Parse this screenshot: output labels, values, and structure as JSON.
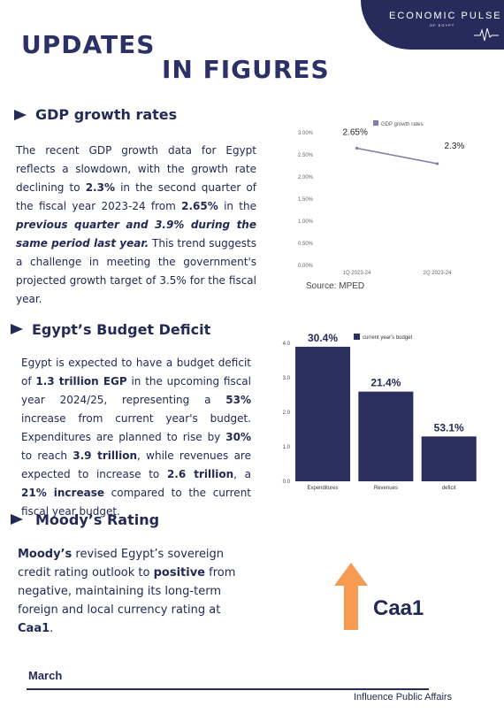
{
  "brand": {
    "name": "ECONOMIC PULSE",
    "sub": "OF EGYPT",
    "pulse_icon": "heartbeat-line-icon"
  },
  "title": {
    "line1": "UPDATES",
    "line2": "IN FIGURES"
  },
  "gdp": {
    "heading": "GDP growth rates",
    "icon": "arrow-bullet-icon",
    "para": {
      "t1": "The recent GDP growth data for Egypt reflects a slowdown, with the growth rate declining to ",
      "b1": "2.3%",
      "t2": " in the second quarter of the fiscal year 2023-24 from ",
      "b2": "2.65%",
      "t3": " in the ",
      "i1": "previous quarter and 3.9% during the same period last year.",
      "t4": " This trend suggests a challenge in meeting the government's projected growth target of 3.5% for the fiscal year."
    },
    "source": "Source: MPED"
  },
  "budget": {
    "heading": "Egypt’s Budget Deficit",
    "para": {
      "t1": "Egypt is expected to have a budget deficit of ",
      "b1": "1.3 trillion EGP",
      "t2": " in the upcoming fiscal year 2024/25, representing a ",
      "b2": "53%",
      "t3": " increase from current year's budget. Expenditures are planned to rise by ",
      "b3": "30%",
      "t4": " to reach ",
      "b4": "3.9 trillion",
      "t5": ", while revenues are expected to increase to ",
      "b5": "2.6 trillion",
      "t6": ", a ",
      "b6": "21% increase",
      "t7": " compared to the current fiscal year budget."
    }
  },
  "moodys": {
    "heading": "Moody’s Rating",
    "para": {
      "b1": "Moody’s",
      "t1": " revised Egypt’s sovereign credit rating outlook to ",
      "b2": "positive",
      "t2": " from negative, maintaining its long-term foreign and local currency rating at ",
      "b3": "Caa1",
      "t3": "."
    },
    "rating_label": "Caa1",
    "arrow_icon": "up-arrow-icon",
    "arrow_color": "#f79a52"
  },
  "footer": {
    "month": "March",
    "org": "Influence Public Affairs"
  },
  "colors": {
    "navy": "#232a55",
    "bar": "#2b2f5e",
    "line": "#7f7da8",
    "accent": "#f79a52"
  },
  "chart_data": [
    {
      "type": "line",
      "categories": [
        "1Q 2023-24",
        "2Q 2023-24"
      ],
      "series": [
        {
          "name": "GDP growth rates",
          "values": [
            2.65,
            2.3
          ]
        }
      ],
      "data_labels": [
        "2.65%",
        "2.3%"
      ],
      "yticks": [
        "0.00%",
        "0.50%",
        "1.00%",
        "1.50%",
        "2.00%",
        "2.50%",
        "3.00%"
      ],
      "ylim": [
        0,
        3
      ],
      "legend": "top-right",
      "grid": false
    },
    {
      "type": "bar",
      "categories": [
        "Expenditures",
        "Revenues",
        "deficit"
      ],
      "series": [
        {
          "name": "current year's budget",
          "values": [
            3.9,
            2.6,
            1.3
          ]
        }
      ],
      "data_labels": [
        "30.4%",
        "21.4%",
        "53.1%"
      ],
      "yticks": [
        "0.0",
        "1.0",
        "2.0",
        "3.0",
        "4.0"
      ],
      "ylim": [
        0,
        4
      ],
      "legend": "top-right",
      "grid": false
    }
  ]
}
